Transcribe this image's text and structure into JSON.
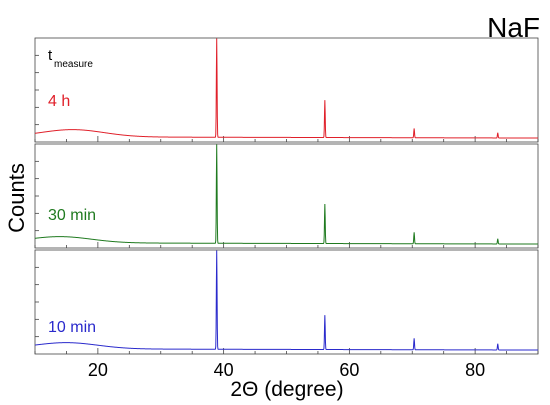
{
  "chart_data": {
    "type": "line",
    "title": "NaF",
    "xlabel": "2Θ (degree)",
    "ylabel": "Counts",
    "xlim": [
      10,
      90
    ],
    "xticks": [
      20,
      40,
      60,
      80
    ],
    "legend_title": {
      "main": "t",
      "sub": "measure"
    },
    "grid": false,
    "y_tick_labels_shown": false,
    "peak_positions_2theta": [
      38.9,
      56.1,
      70.3,
      83.6
    ],
    "panels": [
      {
        "name": "4 h",
        "color": "#e0202a",
        "baseline": 0.05,
        "hump": {
          "center": 16,
          "width": 7,
          "height": 0.07
        },
        "peaks": [
          {
            "x": 38.9,
            "height": 0.95
          },
          {
            "x": 56.1,
            "height": 0.36
          },
          {
            "x": 70.3,
            "height": 0.09
          },
          {
            "x": 83.6,
            "height": 0.05
          }
        ]
      },
      {
        "name": "30 min",
        "color": "#1f7a1f",
        "baseline": 0.05,
        "hump": {
          "center": 14,
          "width": 7,
          "height": 0.06
        },
        "peaks": [
          {
            "x": 38.9,
            "height": 0.95
          },
          {
            "x": 56.1,
            "height": 0.38
          },
          {
            "x": 70.3,
            "height": 0.11
          },
          {
            "x": 83.6,
            "height": 0.05
          }
        ]
      },
      {
        "name": "10 min",
        "color": "#2a2acc",
        "baseline": 0.05,
        "hump": {
          "center": 15,
          "width": 7,
          "height": 0.06
        },
        "peaks": [
          {
            "x": 38.9,
            "height": 0.95
          },
          {
            "x": 56.1,
            "height": 0.33
          },
          {
            "x": 70.3,
            "height": 0.11
          },
          {
            "x": 83.6,
            "height": 0.06
          }
        ]
      }
    ]
  }
}
